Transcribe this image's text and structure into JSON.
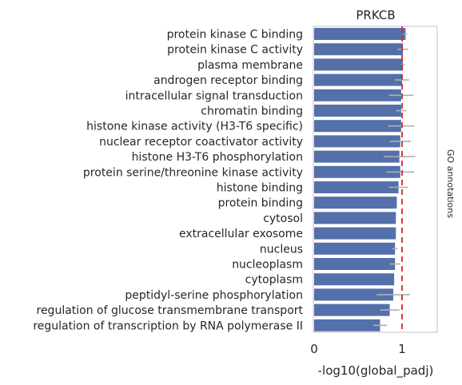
{
  "chart_data": {
    "type": "bar",
    "orientation": "horizontal",
    "title": "PRKCB",
    "xlabel": "-log10(global_padj)",
    "ylabel": "",
    "side_label": "GO annotations",
    "xlim": [
      0,
      1.4
    ],
    "xticks": [
      0,
      1
    ],
    "xtick_labels": [
      "0",
      "1"
    ],
    "reference_line": {
      "x": 1.0,
      "color": "#d62728",
      "style": "dashed"
    },
    "bar_color": "#5470aa",
    "error_color": "#b0b0b0",
    "grid": false,
    "categories": [
      "protein kinase C binding",
      "protein kinase C activity",
      "plasma membrane",
      "androgen receptor binding",
      "intracellular signal transduction",
      "chromatin binding",
      "histone kinase activity (H3-T6 specific)",
      "nuclear receptor coactivator activity",
      "histone H3-T6 phosphorylation",
      "protein serine/threonine kinase activity",
      "histone binding",
      "protein binding",
      "cytosol",
      "extracellular exosome",
      "nucleus",
      "nucleoplasm",
      "cytoplasm",
      "peptidyl-serine phosphorylation",
      "regulation of glucose transmembrane transport",
      "regulation of transcription by RNA polymerase II"
    ],
    "values": [
      1.04,
      1.01,
      1.01,
      1.0,
      0.99,
      0.99,
      0.99,
      0.98,
      0.97,
      0.98,
      0.96,
      0.94,
      0.93,
      0.93,
      0.92,
      0.92,
      0.91,
      0.9,
      0.86,
      0.75
    ],
    "errors": [
      0.02,
      0.06,
      0.02,
      0.08,
      0.14,
      0.06,
      0.15,
      0.12,
      0.18,
      0.16,
      0.11,
      0.0,
      0.0,
      0.0,
      0.03,
      0.06,
      0.0,
      0.19,
      0.11,
      0.08
    ]
  }
}
